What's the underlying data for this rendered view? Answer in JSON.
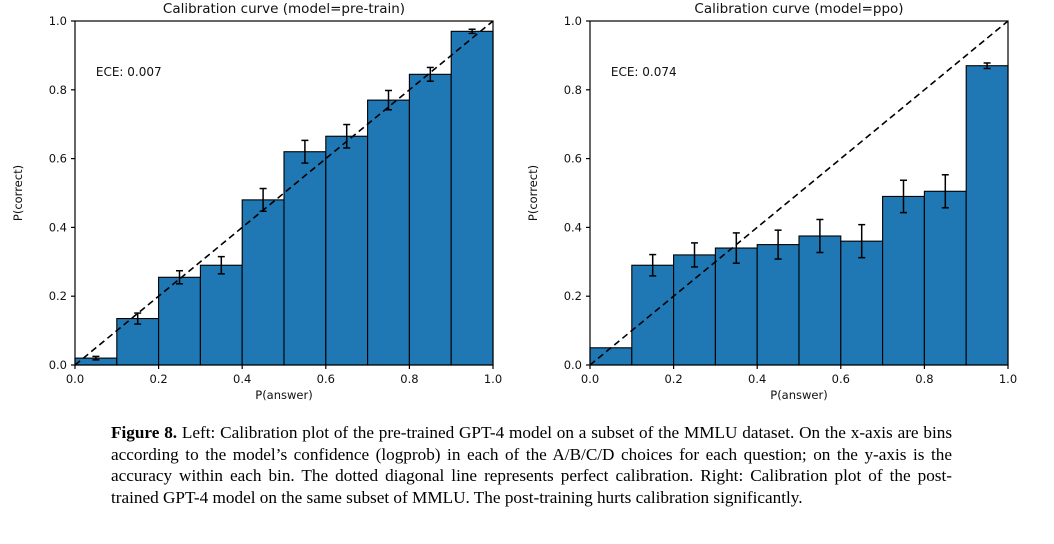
{
  "chart_data": [
    {
      "type": "bar",
      "title": "Calibration curve (model=pre-train)",
      "xlabel": "P(answer)",
      "ylabel": "P(correct)",
      "annotation": "ECE: 0.007",
      "xlim": [
        0.0,
        1.0
      ],
      "ylim": [
        0.0,
        1.0
      ],
      "grid": false,
      "bar_color": "#1f77b4",
      "bar_edge_color": "#000000",
      "diagonal_line": "dashed y=x (perfect calibration)",
      "xticks": [
        "0.0",
        "0.2",
        "0.4",
        "0.6",
        "0.8",
        "1.0"
      ],
      "yticks": [
        "0.0",
        "0.2",
        "0.4",
        "0.6",
        "0.8",
        "1.0"
      ],
      "bin_edges": [
        0.0,
        0.1,
        0.2,
        0.3,
        0.4,
        0.5,
        0.6,
        0.7,
        0.8,
        0.9,
        1.0
      ],
      "bin_centers": [
        0.05,
        0.15,
        0.25,
        0.35,
        0.45,
        0.55,
        0.65,
        0.75,
        0.85,
        0.95
      ],
      "values": [
        0.02,
        0.135,
        0.255,
        0.29,
        0.48,
        0.62,
        0.665,
        0.77,
        0.845,
        0.97
      ],
      "errors": [
        0.005,
        0.016,
        0.019,
        0.025,
        0.033,
        0.033,
        0.034,
        0.028,
        0.02,
        0.006
      ]
    },
    {
      "type": "bar",
      "title": "Calibration curve (model=ppo)",
      "xlabel": "P(answer)",
      "ylabel": "P(correct)",
      "annotation": "ECE: 0.074",
      "xlim": [
        0.0,
        1.0
      ],
      "ylim": [
        0.0,
        1.0
      ],
      "grid": false,
      "bar_color": "#1f77b4",
      "bar_edge_color": "#000000",
      "diagonal_line": "dashed y=x (perfect calibration)",
      "xticks": [
        "0.0",
        "0.2",
        "0.4",
        "0.6",
        "0.8",
        "1.0"
      ],
      "yticks": [
        "0.0",
        "0.2",
        "0.4",
        "0.6",
        "0.8",
        "1.0"
      ],
      "bin_edges": [
        0.0,
        0.1,
        0.2,
        0.3,
        0.4,
        0.5,
        0.6,
        0.7,
        0.8,
        0.9,
        1.0
      ],
      "bin_centers": [
        0.05,
        0.15,
        0.25,
        0.35,
        0.45,
        0.55,
        0.65,
        0.75,
        0.85,
        0.95
      ],
      "values": [
        0.05,
        0.29,
        0.32,
        0.34,
        0.35,
        0.375,
        0.36,
        0.49,
        0.505,
        0.87
      ],
      "errors": [
        0,
        0.031,
        0.035,
        0.044,
        0.042,
        0.048,
        0.048,
        0.047,
        0.048,
        0.008
      ]
    }
  ],
  "caption": {
    "label": "Figure 8.",
    "text": "Left: Calibration plot of the pre-trained GPT-4 model on a subset of the MMLU dataset. On the x-axis are bins according to the model’s confidence (logprob) in each of the A/B/C/D choices for each question; on the y-axis is the accuracy within each bin. The dotted diagonal line represents perfect calibration. Right: Calibration plot of the post-trained GPT-4 model on the same subset of MMLU. The post-training hurts calibration significantly."
  }
}
